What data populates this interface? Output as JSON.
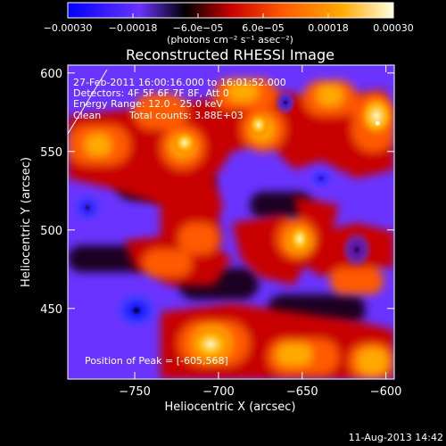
{
  "chart_data": {
    "type": "heatmap",
    "title": "Reconstructed RHESSI Image",
    "xlabel": "Heliocentric X (arcsec)",
    "ylabel": "Heliocentric Y (arcsec)",
    "xlim": [
      -790,
      -595
    ],
    "ylim": [
      405,
      605
    ],
    "x_ticks": [
      "-750",
      "-700",
      "-650",
      "-600"
    ],
    "x_tick_values": [
      -750,
      -700,
      -650,
      -600
    ],
    "y_ticks": [
      "450",
      "500",
      "550",
      "600"
    ],
    "y_tick_values": [
      450,
      500,
      550,
      600
    ],
    "colorbar": {
      "range": [
        -0.0003,
        0.0003
      ],
      "tick_labels": [
        "-0.00030",
        "-0.00018",
        "−6.0e−05",
        "6.0e−05",
        "0.00018",
        "0.00030"
      ],
      "tick_values": [
        -0.0003,
        -0.00018,
        -6e-05,
        6e-05,
        0.00018,
        0.0003
      ],
      "units_text": "(photons cm⁻² s⁻¹ asec⁻²)",
      "colors": [
        "#0000ff",
        "#6a33ff",
        "#000000",
        "#c80000",
        "#ff5a00",
        "#ffaa00",
        "#ffffe0"
      ]
    },
    "annotations": [
      "27-Feb-2011 16:00:16.000 to 16:01:52.000",
      "Detectors: 4F 5F 6F 7F 8F, Att 0",
      "Energy Range: 12.0 - 25.0 keV",
      "Clean",
      "Total counts: 3.88E+03"
    ],
    "peak_text": "Position of Peak = [-605,568]",
    "peak": {
      "x": -605,
      "y": 568
    },
    "grid": false
  },
  "timestamp": "11-Aug-2013 14:42"
}
